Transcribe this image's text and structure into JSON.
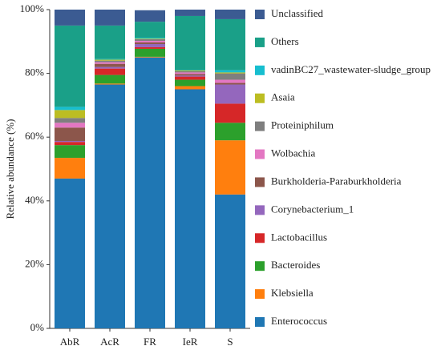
{
  "chart_data": {
    "type": "stacked-bar",
    "y_label": "Relative abundance (%)",
    "categories": [
      "AbR",
      "AcR",
      "FR",
      "IeR",
      "S"
    ],
    "ylim": [
      0,
      100
    ],
    "yticks": [
      {
        "value": 0,
        "label": "0%"
      },
      {
        "value": 20,
        "label": "20%"
      },
      {
        "value": 40,
        "label": "40%"
      },
      {
        "value": 60,
        "label": "60%"
      },
      {
        "value": 80,
        "label": "80%"
      },
      {
        "value": 100,
        "label": "100%"
      }
    ],
    "series": [
      {
        "name": "Enterococcus",
        "color": "#1f77b4",
        "values": [
          47,
          76.5,
          85,
          75,
          42
        ]
      },
      {
        "name": "Klebsiella",
        "color": "#ff7f0e",
        "values": [
          6.5,
          0.3,
          0.2,
          1,
          17
        ]
      },
      {
        "name": "Bacteroides",
        "color": "#2ca02c",
        "values": [
          4,
          2.7,
          2.5,
          2,
          5.5
        ]
      },
      {
        "name": "Lactobacillus",
        "color": "#d62728",
        "values": [
          1,
          2,
          0.5,
          1,
          6
        ]
      },
      {
        "name": "Corynebacterium_1",
        "color": "#9467bd",
        "values": [
          0.3,
          0.5,
          1,
          0.3,
          6
        ]
      },
      {
        "name": "Burkholderia-Paraburkholderia",
        "color": "#8c564b",
        "values": [
          4.2,
          1,
          0.5,
          0.5,
          0.5
        ]
      },
      {
        "name": "Wolbachia",
        "color": "#e377c2",
        "values": [
          1.5,
          0.5,
          0.5,
          0.5,
          1
        ]
      },
      {
        "name": "Proteiniphilum",
        "color": "#7f7f7f",
        "values": [
          1.5,
          0.5,
          0.5,
          0.4,
          2
        ]
      },
      {
        "name": "Asaia",
        "color": "#bcbd22",
        "values": [
          2.5,
          0.3,
          0.2,
          0.2,
          0.3
        ]
      },
      {
        "name": "vadinBC27_wastewater-sludge_group",
        "color": "#17becf",
        "values": [
          1,
          0.2,
          0.3,
          0.1,
          0.7
        ]
      },
      {
        "name": "Others",
        "color": "#1aa088",
        "values": [
          25.5,
          10.5,
          5,
          17,
          16
        ]
      },
      {
        "name": "Unclassified",
        "color": "#3b5b92",
        "values": [
          5,
          5,
          3.6,
          2,
          3
        ]
      }
    ]
  }
}
